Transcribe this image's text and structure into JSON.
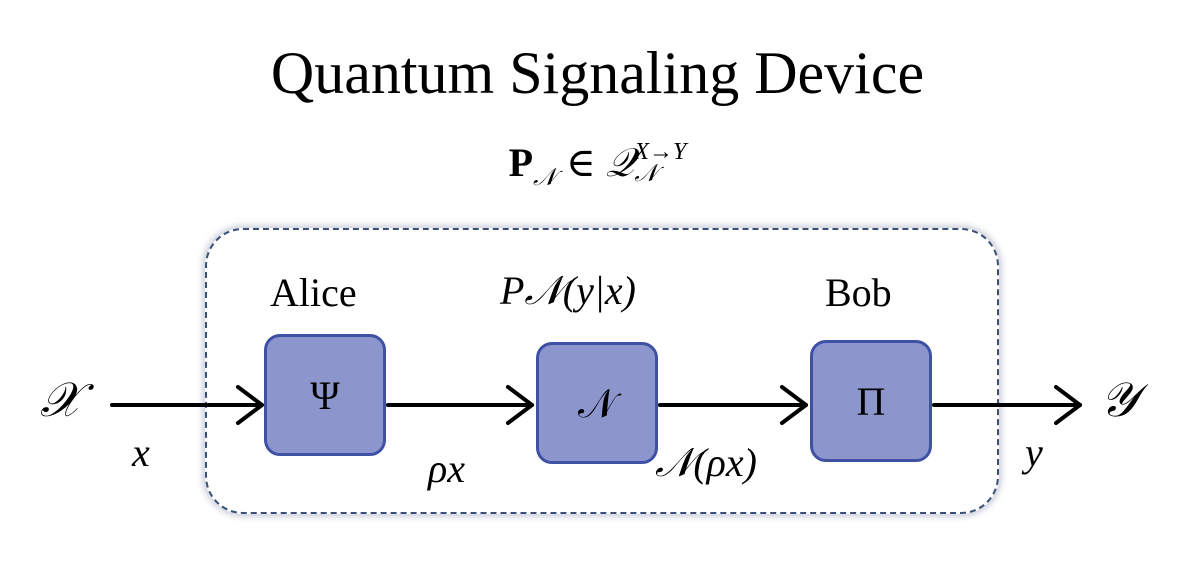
{
  "title": "Quantum Signaling Device",
  "subtitle": {
    "bold_P": "P",
    "sub_N": "𝒩",
    "in_symbol": "∈",
    "Q": "𝒬",
    "sup": "X→Y",
    "sub": "𝒩"
  },
  "channel_label": "P𝒩(y|x)",
  "parties": {
    "alice": "Alice",
    "bob": "Bob"
  },
  "boxes": {
    "encoder": "Ψ",
    "channel": "𝒩",
    "decoder": "Π"
  },
  "io": {
    "input_set": "𝒳",
    "output_set": "𝒴",
    "input_var": "x",
    "output_var": "y"
  },
  "states": {
    "encoded": "ρx",
    "channel_output": "𝒩(ρx)"
  },
  "colors": {
    "box_fill": "#8c96cc",
    "box_border": "#3f51a5",
    "frame": "#3a4f78",
    "arrow": "#000000"
  }
}
